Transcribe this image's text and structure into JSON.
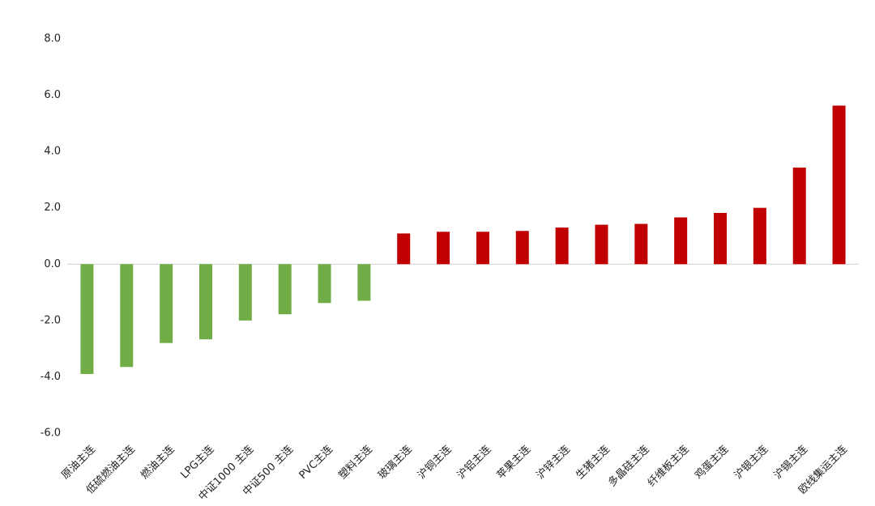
{
  "chart_data": {
    "type": "bar",
    "categories": [
      "原油主连",
      "低硫燃油主连",
      "燃油主连",
      "LPG主连",
      "中证1000 主连",
      "中证500 主连",
      "PVC主连",
      "塑料主连",
      "玻璃主连",
      "沪铜主连",
      "沪铝主连",
      "苹果主连",
      "沪锌主连",
      "生猪主连",
      "多晶硅主连",
      "纤维板主连",
      "鸡蛋主连",
      "沪银主连",
      "沪锡主连",
      "欧线集运主连"
    ],
    "values": [
      -3.9,
      -3.65,
      -2.8,
      -2.67,
      -2.0,
      -1.78,
      -1.38,
      -1.3,
      1.09,
      1.15,
      1.15,
      1.18,
      1.3,
      1.4,
      1.43,
      1.66,
      1.82,
      2.0,
      3.43,
      5.63
    ],
    "color": "#c00000",
    "negative_color": "#70ad47",
    "ylim": [
      -6,
      8
    ],
    "yticks": [
      {
        "value": -6,
        "label": "-6.0"
      },
      {
        "value": -4,
        "label": "-4.0"
      },
      {
        "value": -2,
        "label": "-2.0"
      },
      {
        "value": 0,
        "label": "0.0"
      },
      {
        "value": 2,
        "label": "2.0"
      },
      {
        "value": 4,
        "label": "4.0"
      },
      {
        "value": 6,
        "label": "6.0"
      },
      {
        "value": 8,
        "label": "8.0"
      }
    ],
    "grid": false
  }
}
